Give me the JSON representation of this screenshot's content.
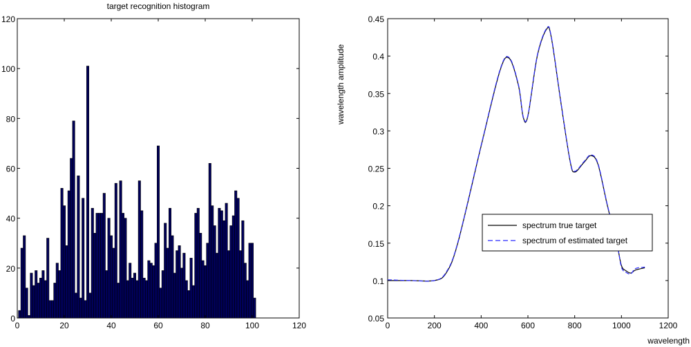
{
  "colors": {
    "bar_fill": "#00005a",
    "axis": "#000000",
    "line1": "#000000",
    "line2": "#2b2bff"
  },
  "chart_data": [
    {
      "type": "bar",
      "title": "target recognition histogram",
      "xlabel": "",
      "ylabel": "",
      "xlim": [
        0,
        120
      ],
      "ylim": [
        0,
        120
      ],
      "xticks": [
        "0",
        "20",
        "40",
        "60",
        "80",
        "100",
        "120"
      ],
      "yticks": [
        "0",
        "20",
        "40",
        "60",
        "80",
        "100",
        "120"
      ],
      "x": [
        1,
        2,
        3,
        4,
        5,
        6,
        7,
        8,
        9,
        10,
        11,
        12,
        13,
        14,
        15,
        16,
        17,
        18,
        19,
        20,
        21,
        22,
        23,
        24,
        25,
        26,
        27,
        28,
        29,
        30,
        31,
        32,
        33,
        34,
        35,
        36,
        37,
        38,
        39,
        40,
        41,
        42,
        43,
        44,
        45,
        46,
        47,
        48,
        49,
        50,
        51,
        52,
        53,
        54,
        55,
        56,
        57,
        58,
        59,
        60,
        61,
        62,
        63,
        64,
        65,
        66,
        67,
        68,
        69,
        70,
        71,
        72,
        73,
        74,
        75,
        76,
        77,
        78,
        79,
        80,
        81,
        82,
        83,
        84,
        85,
        86,
        87,
        88,
        89,
        90,
        91,
        92,
        93,
        94,
        95,
        96,
        97,
        98,
        99,
        100,
        101
      ],
      "values": [
        3,
        28,
        33,
        12,
        1,
        18,
        13,
        19,
        14,
        16,
        19,
        15,
        32,
        7,
        7,
        14,
        22,
        19,
        52,
        45,
        29,
        51,
        64,
        79,
        10,
        57,
        8,
        48,
        7,
        101,
        10,
        44,
        34,
        42,
        42,
        42,
        50,
        19,
        40,
        33,
        28,
        54,
        14,
        55,
        42,
        40,
        15,
        22,
        16,
        18,
        15,
        55,
        43,
        16,
        15,
        23,
        22,
        21,
        30,
        69,
        12,
        19,
        38,
        28,
        44,
        33,
        18,
        27,
        29,
        20,
        26,
        15,
        11,
        24,
        13,
        42,
        44,
        34,
        23,
        21,
        30,
        62,
        45,
        37,
        26,
        44,
        43,
        39,
        46,
        27,
        37,
        41,
        51,
        48,
        27,
        39,
        22,
        15,
        30,
        30,
        8
      ]
    },
    {
      "type": "line",
      "title": "",
      "xlabel": "wavelength",
      "ylabel": "wavelength amplitude",
      "xlim": [
        0,
        1200
      ],
      "ylim": [
        0.05,
        0.45
      ],
      "xticks": [
        "0",
        "200",
        "400",
        "600",
        "800",
        "1000",
        "1200"
      ],
      "yticks": [
        "0.05",
        "0.1",
        "0.15",
        "0.2",
        "0.25",
        "0.3",
        "0.35",
        "0.4",
        "0.45"
      ],
      "legend": "inside, center-right",
      "series": [
        {
          "name": "spectrum true target",
          "x": [
            0,
            100,
            200,
            250,
            300,
            400,
            480,
            520,
            560,
            580,
            600,
            640,
            680,
            700,
            740,
            780,
            800,
            840,
            870,
            900,
            940,
            980,
            1000,
            1020,
            1040,
            1060,
            1100
          ],
          "y": [
            0.1,
            0.1,
            0.1,
            0.11,
            0.15,
            0.28,
            0.38,
            0.397,
            0.36,
            0.318,
            0.32,
            0.4,
            0.436,
            0.425,
            0.34,
            0.26,
            0.245,
            0.258,
            0.267,
            0.255,
            0.2,
            0.15,
            0.12,
            0.113,
            0.11,
            0.114,
            0.117
          ]
        },
        {
          "name": "spectrum of estimated target",
          "x": [
            0,
            100,
            200,
            250,
            300,
            400,
            480,
            520,
            560,
            580,
            600,
            640,
            680,
            700,
            740,
            780,
            800,
            840,
            870,
            900,
            940,
            980,
            1000,
            1020,
            1040,
            1060,
            1100
          ],
          "y": [
            0.101,
            0.1,
            0.1,
            0.111,
            0.151,
            0.281,
            0.381,
            0.398,
            0.361,
            0.319,
            0.321,
            0.401,
            0.437,
            0.426,
            0.341,
            0.261,
            0.246,
            0.259,
            0.268,
            0.256,
            0.201,
            0.151,
            0.118,
            0.111,
            0.109,
            0.116,
            0.118
          ]
        }
      ]
    }
  ]
}
